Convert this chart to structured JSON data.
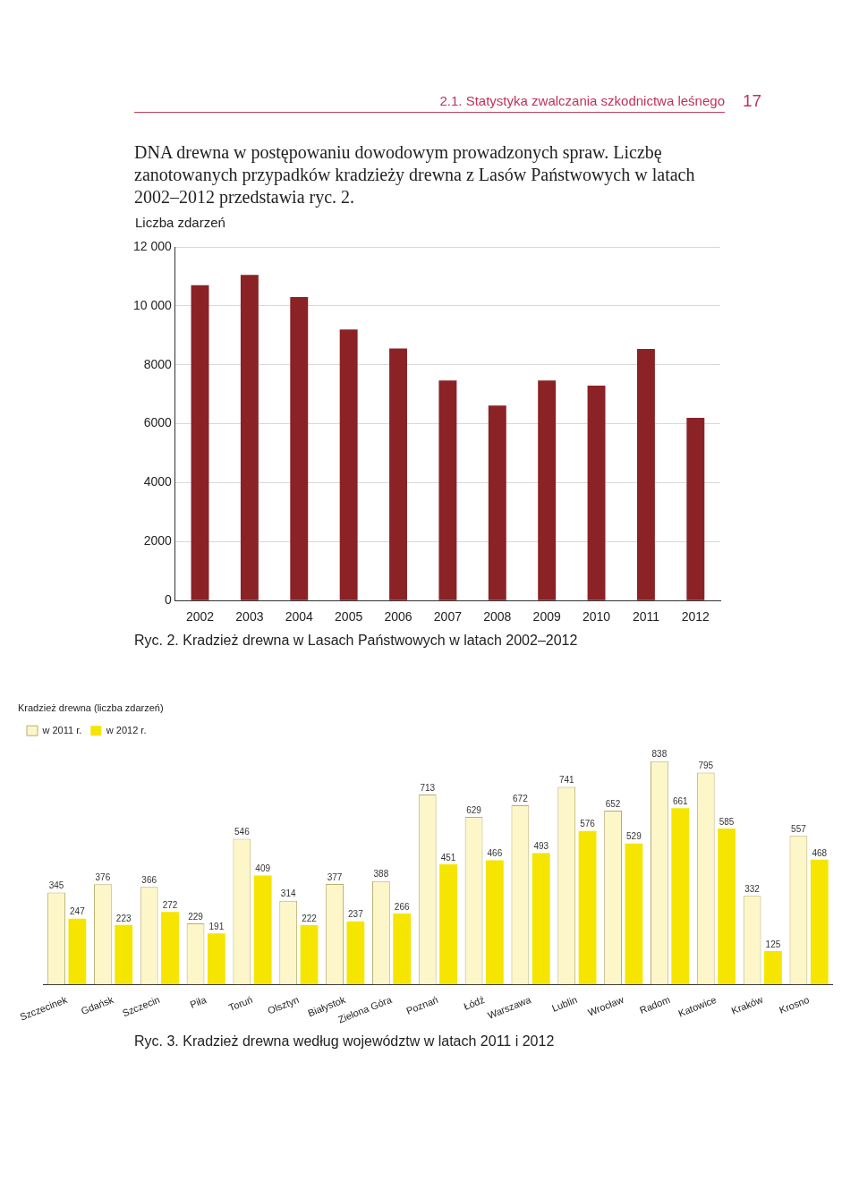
{
  "chart_data": [
    {
      "type": "bar",
      "title": null,
      "ylabel": "Liczba zdarzeń",
      "annotations": [
        "2.1. Statystyka zwalczania szkodnictwa leśnego",
        "17",
        "DNA drewna w postępowaniu dowodowym prowadzonych spraw. Liczbę zanotowanych przypadków kradzieży drewna z Lasów Państwowych w latach 2002–2012 przedstawia ryc. 2.",
        "Ryc. 2. Kradzież drewna w Lasach Państwowych w latach 2002–2012"
      ],
      "categories": [
        "2002",
        "2003",
        "2004",
        "2005",
        "2006",
        "2007",
        "2008",
        "2009",
        "2010",
        "2011",
        "2012"
      ],
      "values": [
        10700,
        11050,
        10300,
        9200,
        8550,
        7470,
        6620,
        7470,
        7290,
        8540,
        6200
      ],
      "color": "#8b2226",
      "ylim": [
        0,
        12000
      ],
      "yticks": [
        0,
        2000,
        4000,
        6000,
        8000,
        {
          "value": 10000,
          "label": "10 000"
        },
        {
          "value": 12000,
          "label": "12 000"
        }
      ],
      "grid": "y",
      "legend": false
    },
    {
      "type": "bar",
      "legend_title": "Kradzież drewna (liczba zdarzeń)",
      "annotations": [
        "Ryc. 3. Kradzież drewna według województw w latach 2011 i 2012"
      ],
      "categories": [
        "Szczecinek",
        "Gdańsk",
        "Szczecin",
        "Piła",
        "Toruń",
        "Olsztyn",
        "Białystok",
        "Zielona Góra",
        "Poznań",
        "Łódź",
        "Warszawa",
        "Lublin",
        "Wrocław",
        "Radom",
        "Katowice",
        "Kraków",
        "Krosno"
      ],
      "series": [
        {
          "name": "w 2011 r.",
          "color": "#fdf6c8",
          "values": [
            345,
            376,
            366,
            229,
            546,
            314,
            377,
            388,
            713,
            629,
            672,
            741,
            652,
            838,
            795,
            332,
            557
          ]
        },
        {
          "name": "w 2012 r.",
          "color": "#f5e500",
          "values": [
            247,
            223,
            272,
            191,
            409,
            222,
            237,
            266,
            451,
            466,
            493,
            576,
            529,
            661,
            585,
            125,
            468
          ]
        }
      ],
      "data_labels": true,
      "tick_labels": "x",
      "grid": false,
      "legend": "top left"
    }
  ]
}
